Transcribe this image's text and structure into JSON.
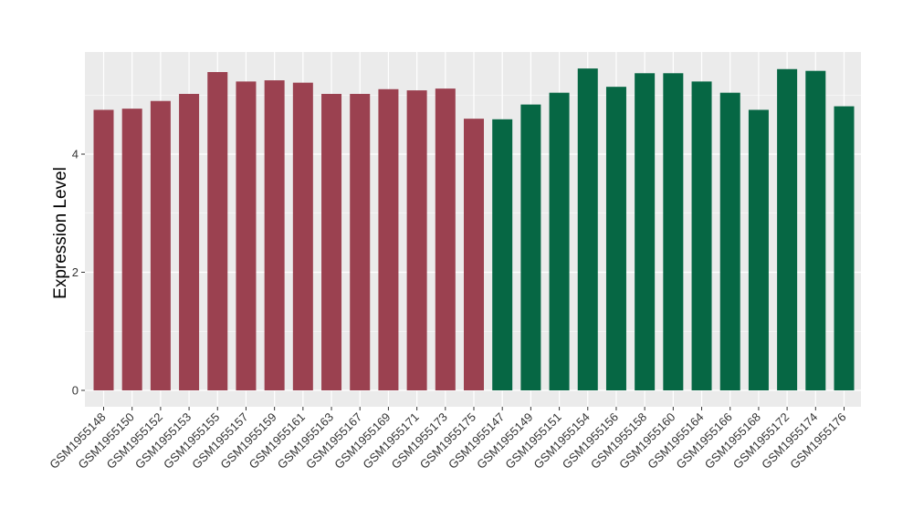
{
  "chart_data": {
    "type": "bar",
    "title": "",
    "xlabel": "",
    "ylabel": "Expression Level",
    "ylim": [
      0,
      5.7
    ],
    "yticks": [
      0,
      2,
      4
    ],
    "grid": true,
    "categories": [
      "GSM1955148",
      "GSM1955150",
      "GSM1955152",
      "GSM1955153",
      "GSM1955155",
      "GSM1955157",
      "GSM1955159",
      "GSM1955161",
      "GSM1955163",
      "GSM1955167",
      "GSM1955169",
      "GSM1955171",
      "GSM1955173",
      "GSM1955175",
      "GSM1955147",
      "GSM1955149",
      "GSM1955151",
      "GSM1955154",
      "GSM1955156",
      "GSM1955158",
      "GSM1955160",
      "GSM1955164",
      "GSM1955166",
      "GSM1955168",
      "GSM1955172",
      "GSM1955174",
      "GSM1955176"
    ],
    "series": [
      {
        "color": "#9b4150",
        "values": [
          4.75,
          4.77,
          4.9,
          5.02,
          5.39,
          5.23,
          5.25,
          5.21,
          5.02,
          5.02,
          5.1,
          5.08,
          5.11,
          4.6,
          null,
          null,
          null,
          null,
          null,
          null,
          null,
          null,
          null,
          null,
          null,
          null,
          null
        ]
      },
      {
        "color": "#066744",
        "values": [
          null,
          null,
          null,
          null,
          null,
          null,
          null,
          null,
          null,
          null,
          null,
          null,
          null,
          null,
          4.59,
          4.84,
          5.04,
          5.45,
          5.14,
          5.37,
          5.37,
          5.23,
          5.04,
          4.75,
          5.44,
          5.41,
          4.81
        ]
      }
    ],
    "panel_background": "#ebebeb"
  }
}
